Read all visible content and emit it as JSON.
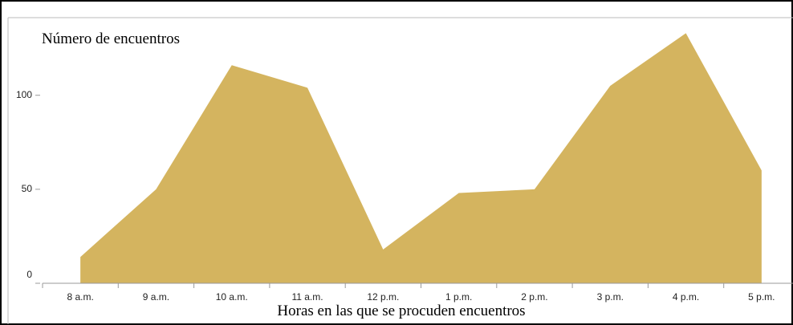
{
  "chart_data": {
    "type": "area",
    "y_label": "Número de encuentros",
    "x_label": "Horas en las que se procuden encuentros",
    "categories": [
      "8 a.m.",
      "9 a.m.",
      "10 a.m.",
      "11 a.m.",
      "12 p.m.",
      "1 p.m.",
      "2 p.m.",
      "3 p.m.",
      "4 p.m.",
      "5 p.m."
    ],
    "values": [
      14,
      50,
      116,
      104,
      18,
      48,
      50,
      105,
      133,
      60
    ],
    "color": "#d4b45f",
    "ylim": [
      0,
      140
    ],
    "yticks": [
      0,
      50,
      100
    ]
  }
}
